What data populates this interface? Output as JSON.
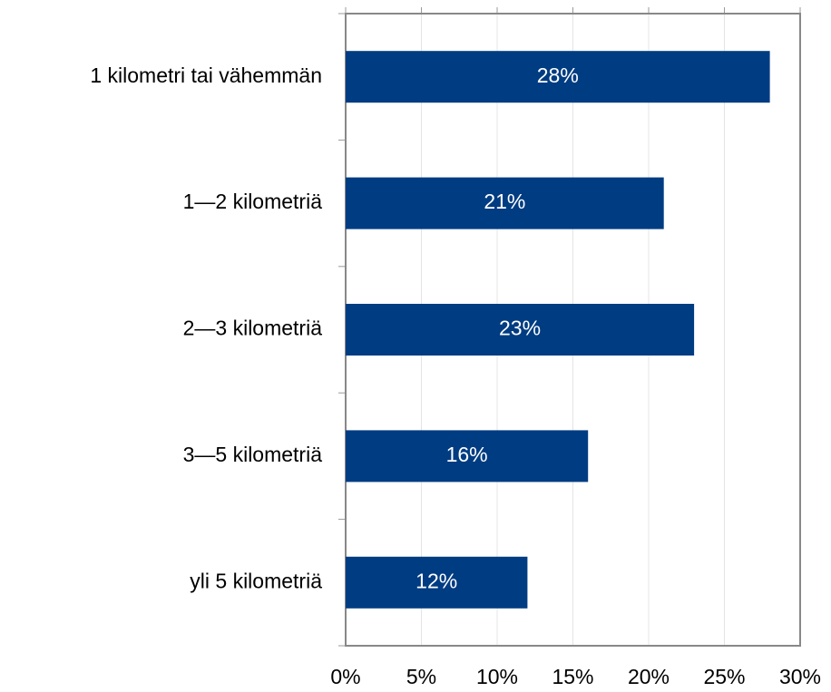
{
  "chart_data": {
    "type": "bar",
    "orientation": "horizontal",
    "categories": [
      "1 kilometri tai vähemmän",
      "1—2 kilometriä",
      "2—3 kilometriä",
      "3—5 kilometriä",
      "yli 5 kilometriä"
    ],
    "values": [
      28,
      21,
      23,
      16,
      12
    ],
    "value_labels": [
      "28%",
      "21%",
      "23%",
      "16%",
      "12%"
    ],
    "color": "#003c82",
    "xlim": [
      0,
      30
    ],
    "xticks": [
      {
        "value": 0,
        "label": "0%"
      },
      {
        "value": 5,
        "label": "5%"
      },
      {
        "value": 10,
        "label": "10%"
      },
      {
        "value": 15,
        "label": "15%"
      },
      {
        "value": 20,
        "label": "20%"
      },
      {
        "value": 25,
        "label": "25%"
      },
      {
        "value": 30,
        "label": "30%"
      }
    ],
    "grid": true
  }
}
